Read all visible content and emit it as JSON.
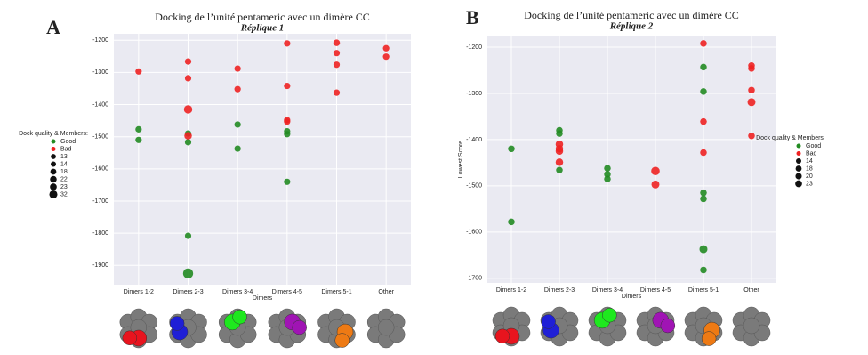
{
  "chart_data": [
    {
      "type": "scatter",
      "panel": "A",
      "title": "Docking de l’unité pentameric avec un dimère CC",
      "subtitle": "Réplique 1",
      "x_label": "Dimers",
      "categories": [
        "Dimers 1-2",
        "Dimers 2-3",
        "Dimers 3-4",
        "Dimers 4-5",
        "Dimers 5-1",
        "Other"
      ],
      "ylim": [
        -1960,
        -1180
      ],
      "yticks": [
        -1200,
        -1300,
        -1400,
        -1500,
        -1600,
        -1700,
        -1800,
        -1900
      ],
      "grid": true,
      "legend": {
        "title": "Dock quality & Members:",
        "position": "left",
        "sizes": [
          13,
          14,
          18,
          22,
          23,
          32
        ]
      },
      "series": [
        {
          "name": "Good",
          "color": "#228b22",
          "x": [
            "Dimers 1-2",
            "Dimers 1-2",
            "Dimers 2-3",
            "Dimers 2-3",
            "Dimers 2-3",
            "Dimers 2-3",
            "Dimers 3-4",
            "Dimers 3-4",
            "Dimers 4-5",
            "Dimers 4-5",
            "Dimers 4-5"
          ],
          "values": [
            -1477,
            -1510,
            -1490,
            -1517,
            -1808,
            -1925,
            -1462,
            -1537,
            -1483,
            -1492,
            -1640
          ],
          "sizes": [
            13,
            13,
            13,
            13,
            13,
            32,
            13,
            13,
            13,
            13,
            13
          ]
        },
        {
          "name": "Bad",
          "color": "#ee2222",
          "x": [
            "Dimers 1-2",
            "Dimers 2-3",
            "Dimers 2-3",
            "Dimers 2-3",
            "Dimers 2-3",
            "Dimers 3-4",
            "Dimers 3-4",
            "Dimers 4-5",
            "Dimers 4-5",
            "Dimers 4-5",
            "Dimers 4-5",
            "Dimers 5-1",
            "Dimers 5-1",
            "Dimers 5-1",
            "Dimers 5-1",
            "Other",
            "Other"
          ],
          "values": [
            -1297,
            -1266,
            -1318,
            -1415,
            -1497,
            -1288,
            -1352,
            -1210,
            -1342,
            -1448,
            -1453,
            -1208,
            -1240,
            -1276,
            -1363,
            -1225,
            -1251
          ],
          "sizes": [
            13,
            13,
            13,
            22,
            18,
            13,
            13,
            13,
            13,
            13,
            13,
            14,
            13,
            13,
            13,
            13,
            13
          ]
        }
      ]
    },
    {
      "type": "scatter",
      "panel": "B",
      "title": "Docking de l’unité pentameric avec un dimère CC",
      "subtitle": "Réplique 2",
      "x_label": "Dimers",
      "y_label": "Lowest Score",
      "categories": [
        "Dimers 1-2",
        "Dimers 2-3",
        "Dimers 3-4",
        "Dimers 4-5",
        "Dimers 5-1",
        "Other"
      ],
      "ylim": [
        -1710,
        -1175
      ],
      "yticks": [
        -1200,
        -1300,
        -1400,
        -1500,
        -1600,
        -1700
      ],
      "grid": true,
      "legend": {
        "title": "Dock quality & Members",
        "position": "right",
        "sizes": [
          14,
          18,
          20,
          23
        ]
      },
      "series": [
        {
          "name": "Good",
          "color": "#228b22",
          "x": [
            "Dimers 1-2",
            "Dimers 1-2",
            "Dimers 2-3",
            "Dimers 2-3",
            "Dimers 2-3",
            "Dimers 3-4",
            "Dimers 3-4",
            "Dimers 3-4",
            "Dimers 5-1",
            "Dimers 5-1",
            "Dimers 5-1",
            "Dimers 5-1",
            "Dimers 5-1",
            "Dimers 5-1"
          ],
          "values": [
            -1420,
            -1578,
            -1380,
            -1387,
            -1466,
            -1462,
            -1475,
            -1485,
            -1243,
            -1296,
            -1515,
            -1528,
            -1637,
            -1682
          ],
          "sizes": [
            14,
            14,
            14,
            14,
            14,
            14,
            14,
            14,
            14,
            14,
            14,
            14,
            20,
            14
          ]
        },
        {
          "name": "Bad",
          "color": "#ee2222",
          "x": [
            "Dimers 2-3",
            "Dimers 2-3",
            "Dimers 2-3",
            "Dimers 2-3",
            "Dimers 4-5",
            "Dimers 4-5",
            "Dimers 5-1",
            "Dimers 5-1",
            "Dimers 5-1",
            "Other",
            "Other",
            "Other",
            "Other",
            "Other"
          ],
          "values": [
            -1410,
            -1420,
            -1425,
            -1449,
            -1468,
            -1497,
            -1192,
            -1361,
            -1428,
            -1240,
            -1246,
            -1293,
            -1319,
            -1392
          ],
          "sizes": [
            18,
            18,
            18,
            18,
            23,
            20,
            14,
            14,
            14,
            14,
            14,
            14,
            20,
            14
          ]
        }
      ]
    }
  ]
}
